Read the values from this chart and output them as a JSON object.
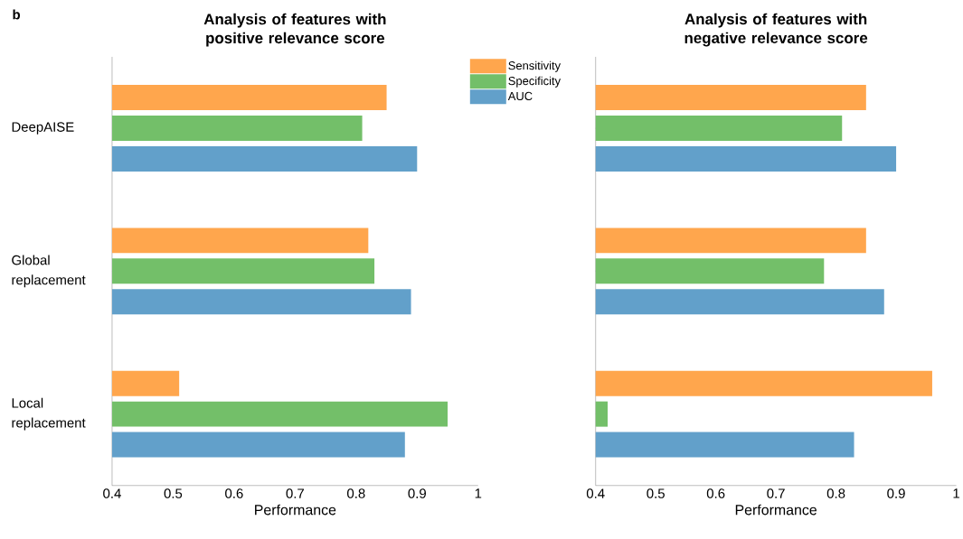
{
  "chart_data": [
    {
      "type": "bar",
      "orientation": "horizontal",
      "title": "Analysis of features with positive relevance score",
      "xlabel": "Performance",
      "categories": [
        "DeepAISE",
        "Global replacement",
        "Local replacement"
      ],
      "xlim": [
        0.4,
        1
      ],
      "xticks": [
        0.4,
        0.5,
        0.6,
        0.7,
        0.8,
        0.9,
        1
      ],
      "legend": "top right",
      "annotations": [
        "b"
      ],
      "series": [
        {
          "name": "Sensitivity",
          "color": "#ffa64d",
          "values": [
            0.85,
            0.82,
            0.51
          ]
        },
        {
          "name": "Specificity",
          "color": "#73bf69",
          "values": [
            0.81,
            0.83,
            0.95
          ]
        },
        {
          "name": "AUC",
          "color": "#62a0ca",
          "values": [
            0.9,
            0.89,
            0.88
          ]
        }
      ]
    },
    {
      "type": "bar",
      "orientation": "horizontal",
      "title": "Analysis of features with negative relevance score",
      "xlabel": "Performance",
      "categories": [
        null,
        null,
        null
      ],
      "xlim": [
        0.4,
        1
      ],
      "xticks": [
        0.4,
        0.5,
        0.6,
        0.7,
        0.8,
        0.9,
        1
      ],
      "series": [
        {
          "color": "#ffa64d",
          "values": [
            0.85,
            0.85,
            0.96
          ]
        },
        {
          "color": "#73bf69",
          "values": [
            0.81,
            0.78,
            0.42
          ]
        },
        {
          "color": "#62a0ca",
          "values": [
            0.9,
            0.88,
            0.83
          ]
        }
      ]
    }
  ]
}
